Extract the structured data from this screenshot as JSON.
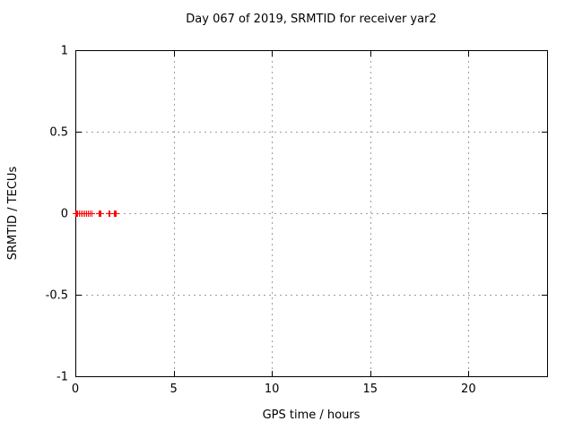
{
  "window": {
    "background": "#ffffff"
  },
  "chart_data": {
    "type": "scatter",
    "title": "Day 067 of 2019, SRMTID for receiver yar2",
    "xlabel": "GPS time / hours",
    "ylabel": "SRMTID / TECUs",
    "xlim": [
      0,
      24
    ],
    "ylim": [
      -1,
      1
    ],
    "xticks": [
      0,
      5,
      10,
      15,
      20
    ],
    "ytick_labels": [
      "-1",
      "-0.5",
      "0",
      "0.5",
      "1"
    ],
    "yticks": [
      -1,
      -0.5,
      0,
      0.5,
      1
    ],
    "grid": true,
    "grid_style": "dotted",
    "grid_color": "#9e9e9e",
    "frame_color": "#000000",
    "legend": "none",
    "series": [
      {
        "name": "SRMTID",
        "marker": "plus",
        "color": "#ff0000",
        "points": [
          {
            "x": 0.0,
            "y": 0
          },
          {
            "x": 0.05,
            "y": 0
          },
          {
            "x": 0.09,
            "y": 0
          },
          {
            "x": 0.18,
            "y": 0
          },
          {
            "x": 0.27,
            "y": 0
          },
          {
            "x": 0.37,
            "y": 0
          },
          {
            "x": 0.46,
            "y": 0
          },
          {
            "x": 0.55,
            "y": 0
          },
          {
            "x": 0.64,
            "y": 0
          },
          {
            "x": 0.73,
            "y": 0
          },
          {
            "x": 0.82,
            "y": 0
          },
          {
            "x": 1.19,
            "y": 0
          },
          {
            "x": 1.23,
            "y": 0
          },
          {
            "x": 1.28,
            "y": 0
          },
          {
            "x": 1.69,
            "y": 0
          },
          {
            "x": 1.73,
            "y": 0
          },
          {
            "x": 1.96,
            "y": 0
          },
          {
            "x": 2.01,
            "y": 0
          },
          {
            "x": 2.05,
            "y": 0
          }
        ]
      }
    ]
  }
}
